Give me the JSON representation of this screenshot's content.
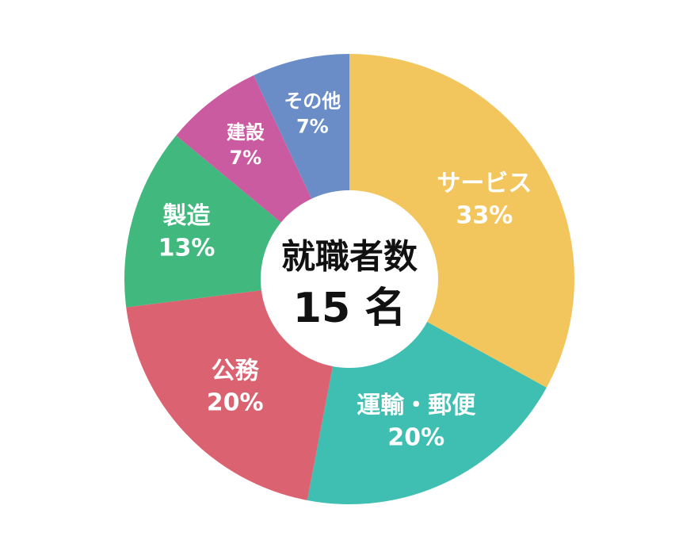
{
  "chart_data": {
    "type": "pie",
    "variant": "donut",
    "center": {
      "title": "就職者数",
      "value": "15 名"
    },
    "slices": [
      {
        "label": "サービス",
        "value": 33,
        "display": "33%",
        "color": "#F2C65C"
      },
      {
        "label": "運輸・郵便",
        "value": 20,
        "display": "20%",
        "color": "#3FBFB1"
      },
      {
        "label": "公務",
        "value": 20,
        "display": "20%",
        "color": "#DB6371"
      },
      {
        "label": "製造",
        "value": 13,
        "display": "13%",
        "color": "#41B87E"
      },
      {
        "label": "建設",
        "value": 7,
        "display": "7%",
        "color": "#CB5BA0"
      },
      {
        "label": "その他",
        "value": 7,
        "display": "7%",
        "color": "#6A8DC7"
      }
    ],
    "legend": "none",
    "grid": false
  }
}
